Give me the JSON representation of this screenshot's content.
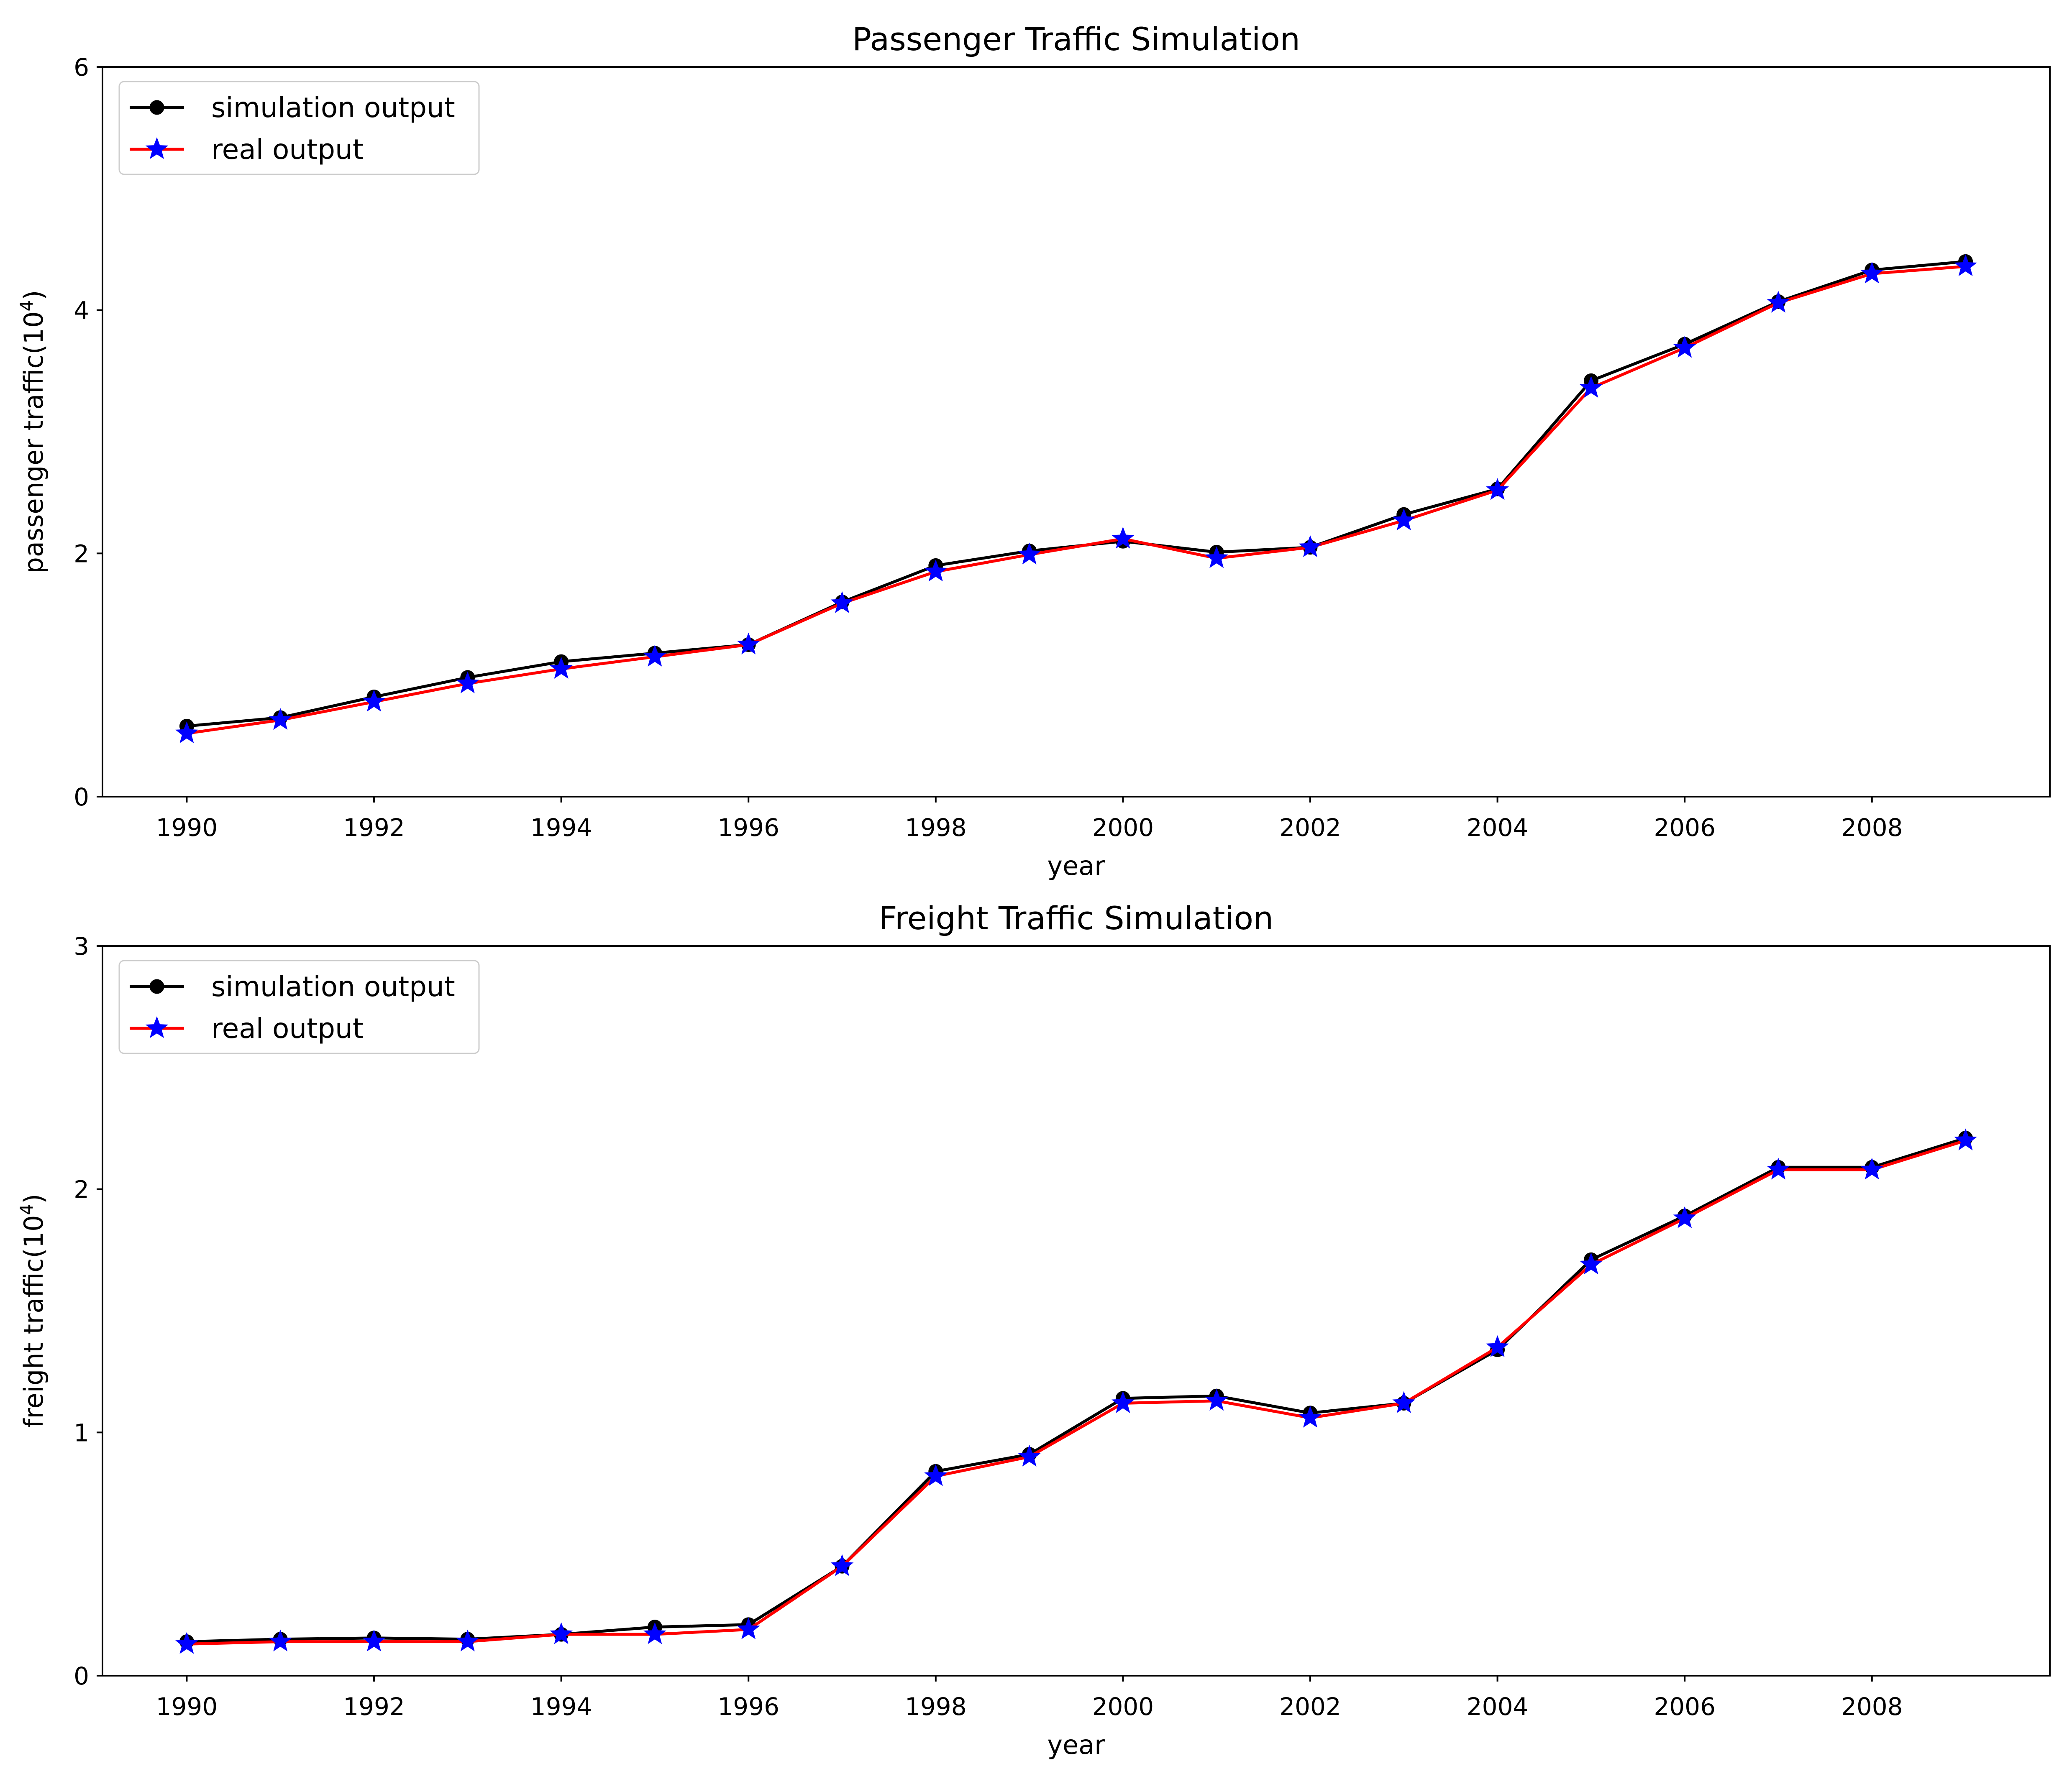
{
  "chart_data": [
    {
      "type": "line",
      "title": "Passenger Traffic Simulation",
      "xlabel": "year",
      "ylabel_main": "passenger traffic(10",
      "ylabel_exp": "4",
      "ylabel_close": ")",
      "xlim": [
        1989.1,
        2009.9
      ],
      "ylim": [
        0,
        6
      ],
      "xticks": [
        1990,
        1992,
        1994,
        1996,
        1998,
        2000,
        2002,
        2004,
        2006,
        2008
      ],
      "yticks": [
        0,
        2,
        4,
        6
      ],
      "grid": false,
      "legend_position": "top-left",
      "x": [
        1990,
        1991,
        1992,
        1993,
        1994,
        1995,
        1996,
        1997,
        1998,
        1999,
        2000,
        2001,
        2002,
        2003,
        2004,
        2005,
        2006,
        2007,
        2008,
        2009
      ],
      "series": [
        {
          "name": "simulation output",
          "line_color": "#000000",
          "marker": "circle",
          "marker_color": "#000000",
          "values": [
            0.58,
            0.65,
            0.82,
            0.98,
            1.11,
            1.18,
            1.25,
            1.6,
            1.9,
            2.02,
            2.1,
            2.01,
            2.05,
            2.32,
            2.53,
            3.42,
            3.72,
            4.07,
            4.33,
            4.4
          ]
        },
        {
          "name": "real output",
          "line_color": "#ff0000",
          "marker": "star",
          "marker_color": "#0000ff",
          "values": [
            0.52,
            0.63,
            0.78,
            0.93,
            1.05,
            1.15,
            1.25,
            1.59,
            1.85,
            1.99,
            2.12,
            1.96,
            2.05,
            2.27,
            2.52,
            3.36,
            3.69,
            4.06,
            4.3,
            4.36
          ]
        }
      ]
    },
    {
      "type": "line",
      "title": "Freight Traffic Simulation",
      "xlabel": "year",
      "ylabel_main": "freight traffic(10",
      "ylabel_exp": "4",
      "ylabel_close": ")",
      "xlim": [
        1989.1,
        2009.9
      ],
      "ylim": [
        0,
        3
      ],
      "xticks": [
        1990,
        1992,
        1994,
        1996,
        1998,
        2000,
        2002,
        2004,
        2006,
        2008
      ],
      "yticks": [
        0,
        1,
        2,
        3
      ],
      "grid": false,
      "legend_position": "top-left",
      "x": [
        1990,
        1991,
        1992,
        1993,
        1994,
        1995,
        1996,
        1997,
        1998,
        1999,
        2000,
        2001,
        2002,
        2003,
        2004,
        2005,
        2006,
        2007,
        2008,
        2009
      ],
      "series": [
        {
          "name": "simulation output",
          "line_color": "#000000",
          "marker": "circle",
          "marker_color": "#000000",
          "values": [
            0.14,
            0.15,
            0.155,
            0.15,
            0.17,
            0.2,
            0.21,
            0.45,
            0.84,
            0.91,
            1.14,
            1.15,
            1.08,
            1.12,
            1.34,
            1.71,
            1.89,
            2.09,
            2.09,
            2.21
          ]
        },
        {
          "name": "real output",
          "line_color": "#ff0000",
          "marker": "star",
          "marker_color": "#0000ff",
          "values": [
            0.13,
            0.14,
            0.14,
            0.14,
            0.17,
            0.17,
            0.19,
            0.45,
            0.82,
            0.9,
            1.12,
            1.13,
            1.06,
            1.12,
            1.35,
            1.69,
            1.88,
            2.08,
            2.08,
            2.2
          ]
        }
      ]
    }
  ]
}
